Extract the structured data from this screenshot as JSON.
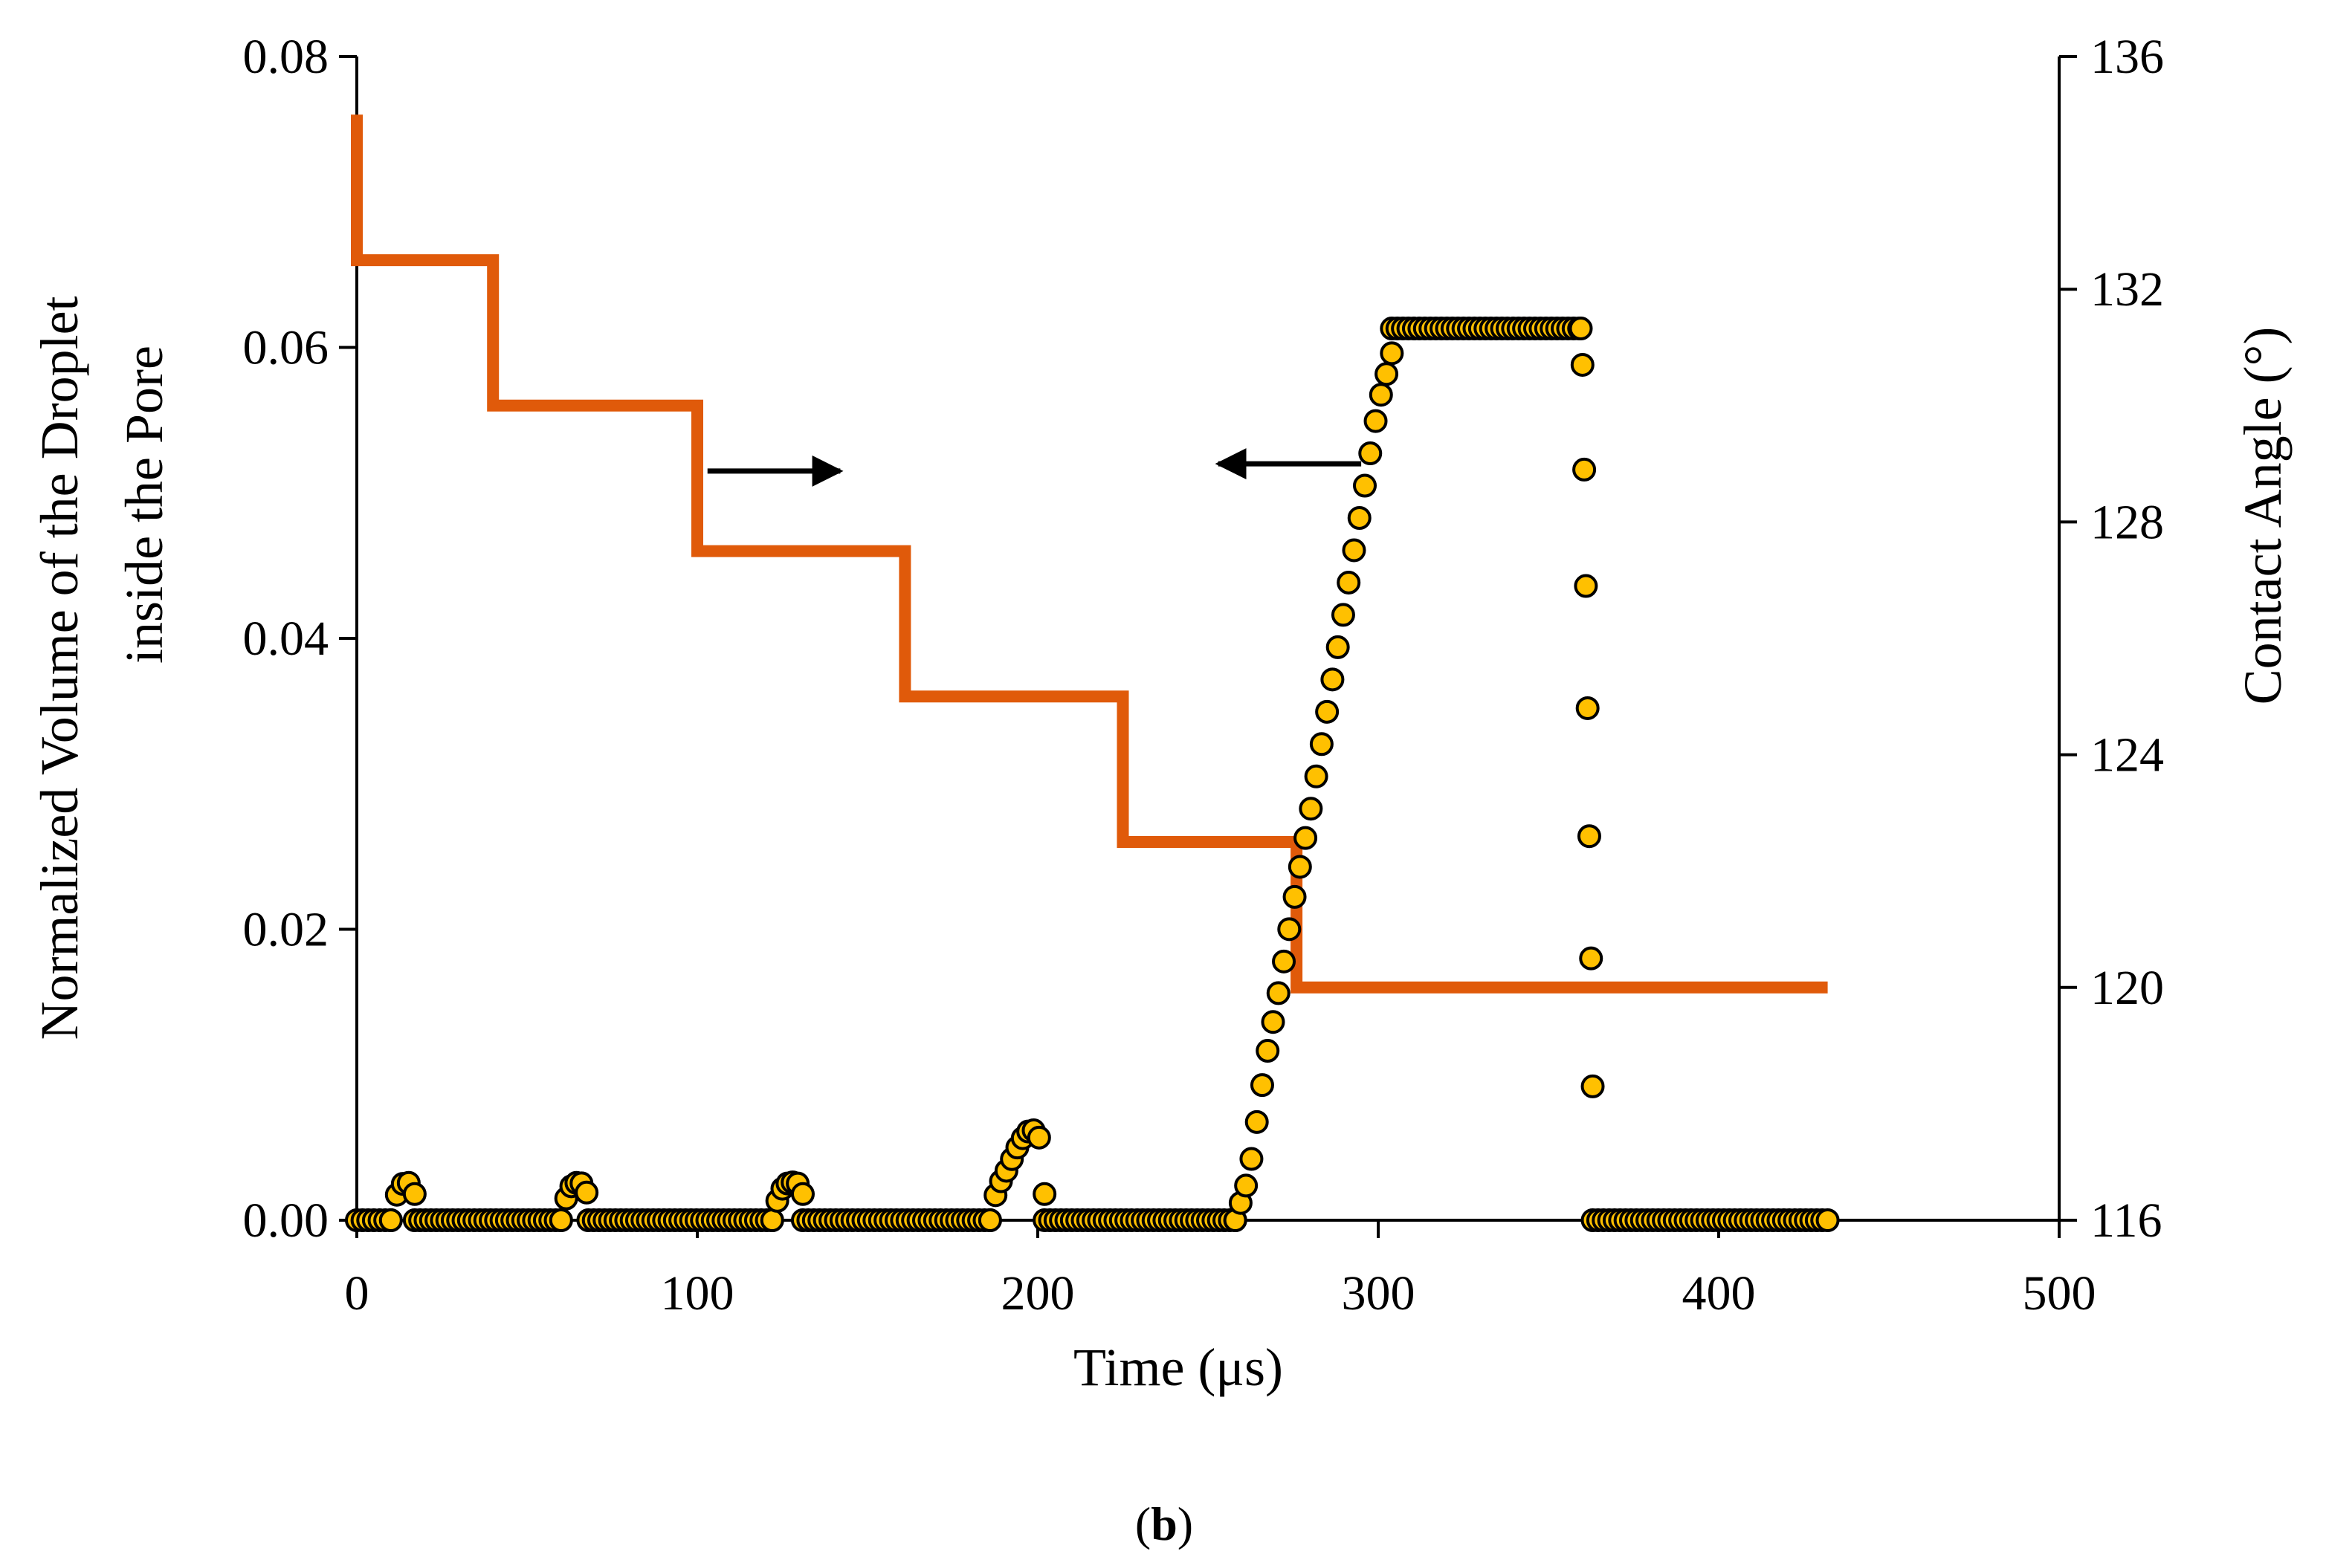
{
  "chart_data": {
    "type": "scatter",
    "caption": "b",
    "xlabel": "Time (μs)",
    "ylabel_left_lines": [
      "Normalized Volume of the Droplet",
      "inside the Pore"
    ],
    "ylabel_right": "Contact Angle (°)",
    "xlim": [
      0,
      500
    ],
    "ylim_left": [
      0,
      0.08
    ],
    "ylim_right": [
      116,
      136
    ],
    "x_ticks": [
      "0",
      "100",
      "200",
      "300",
      "400",
      "500"
    ],
    "y_left_ticks": [
      "0.00",
      "0.02",
      "0.04",
      "0.06",
      "0.08"
    ],
    "y_right_ticks": [
      "116",
      "120",
      "124",
      "128",
      "132",
      "136"
    ],
    "colors": {
      "volume_fill": "#FFC000",
      "volume_edge": "#000000",
      "contact_angle": "#E05A0A",
      "axes": "#000000"
    },
    "series": [
      {
        "name": "Normalized Volume of the Droplet inside the Pore",
        "axis": "left",
        "style": "markers",
        "segments": [
          {
            "x_start": 0,
            "x_end": 10,
            "points": [
              [
                0,
                0
              ],
              [
                10,
                0
              ]
            ]
          },
          {
            "x_start": 10,
            "x_end": 17,
            "points": [
              [
                10,
                0
              ],
              [
                11,
                0.001
              ],
              [
                12,
                0.002
              ],
              [
                13.5,
                0.0025
              ],
              [
                15,
                0.0026
              ],
              [
                16.5,
                0.0024
              ],
              [
                17,
                0.0018
              ]
            ]
          },
          {
            "x_start": 17,
            "x_end": 60,
            "points": [
              [
                17,
                0
              ],
              [
                60,
                0
              ]
            ]
          },
          {
            "x_start": 60,
            "x_end": 68,
            "points": [
              [
                60,
                0
              ],
              [
                61,
                0.001
              ],
              [
                62,
                0.002
              ],
              [
                63.5,
                0.0025
              ],
              [
                65,
                0.0026
              ],
              [
                66.5,
                0.0025
              ],
              [
                67.5,
                0.0019
              ]
            ]
          },
          {
            "x_start": 68,
            "x_end": 122,
            "points": [
              [
                68,
                0
              ],
              [
                122,
                0
              ]
            ]
          },
          {
            "x_start": 122,
            "x_end": 131,
            "points": [
              [
                122,
                0
              ],
              [
                123,
                0.001
              ],
              [
                124.5,
                0.002
              ],
              [
                126,
                0.0025
              ],
              [
                128,
                0.0026
              ],
              [
                130,
                0.0025
              ],
              [
                131,
                0.0018
              ]
            ]
          },
          {
            "x_start": 131,
            "x_end": 186,
            "points": [
              [
                131,
                0
              ],
              [
                186,
                0
              ]
            ]
          },
          {
            "x_start": 186,
            "x_end": 202,
            "points": [
              [
                186,
                0
              ],
              [
                187,
                0.001
              ],
              [
                188,
                0.0022
              ],
              [
                190,
                0.003
              ],
              [
                192,
                0.004
              ],
              [
                194,
                0.005
              ],
              [
                196,
                0.0058
              ],
              [
                198,
                0.0063
              ],
              [
                200,
                0.006
              ],
              [
                201.5,
                0.0048
              ],
              [
                202,
                0.0018
              ]
            ]
          },
          {
            "x_start": 202,
            "x_end": 258,
            "points": [
              [
                202,
                0
              ],
              [
                258,
                0
              ]
            ]
          },
          {
            "x_start": 258,
            "x_end": 304,
            "points": [
              [
                258,
                0
              ],
              [
                262,
                0.003
              ],
              [
                267,
                0.011
              ],
              [
                271,
                0.016
              ],
              [
                276,
                0.023
              ],
              [
                280,
                0.028
              ],
              [
                285,
                0.035
              ],
              [
                290,
                0.042
              ],
              [
                295,
                0.049
              ],
              [
                300,
                0.056
              ],
              [
                304,
                0.0596
              ]
            ]
          },
          {
            "x_start": 304,
            "x_end": 359,
            "points": [
              [
                304,
                0.0613
              ],
              [
                359,
                0.0613
              ]
            ]
          },
          {
            "x_start": 359,
            "x_end": 363,
            "points": [
              [
                359.5,
                0.0613
              ],
              [
                360,
                0.0588
              ],
              [
                360.5,
                0.0516
              ],
              [
                361,
                0.0436
              ],
              [
                361.5,
                0.0352
              ],
              [
                362,
                0.0264
              ],
              [
                362.5,
                0.018
              ],
              [
                363,
                0.0092
              ]
            ]
          },
          {
            "x_start": 363,
            "x_end": 432,
            "points": [
              [
                363,
                0
              ],
              [
                432,
                0
              ]
            ]
          }
        ]
      },
      {
        "name": "Contact Angle",
        "axis": "right",
        "style": "step-line",
        "points": [
          [
            0,
            135
          ],
          [
            0,
            132.5
          ],
          [
            40,
            132.5
          ],
          [
            40,
            130
          ],
          [
            100,
            130
          ],
          [
            100,
            127.5
          ],
          [
            161,
            127.5
          ],
          [
            161,
            125
          ],
          [
            225,
            125
          ],
          [
            225,
            122.5
          ],
          [
            276,
            122.5
          ],
          [
            276,
            120
          ],
          [
            432,
            120
          ]
        ]
      }
    ],
    "annotations": [
      {
        "label": "arrow-right",
        "meaning": "orange series read on right axis",
        "from": [
          103,
          0.0515
        ],
        "to": [
          142,
          0.0515
        ]
      },
      {
        "label": "arrow-left",
        "meaning": "black/yellow series read on left axis",
        "from": [
          295,
          0.052
        ],
        "to": [
          253,
          0.052
        ]
      }
    ]
  }
}
